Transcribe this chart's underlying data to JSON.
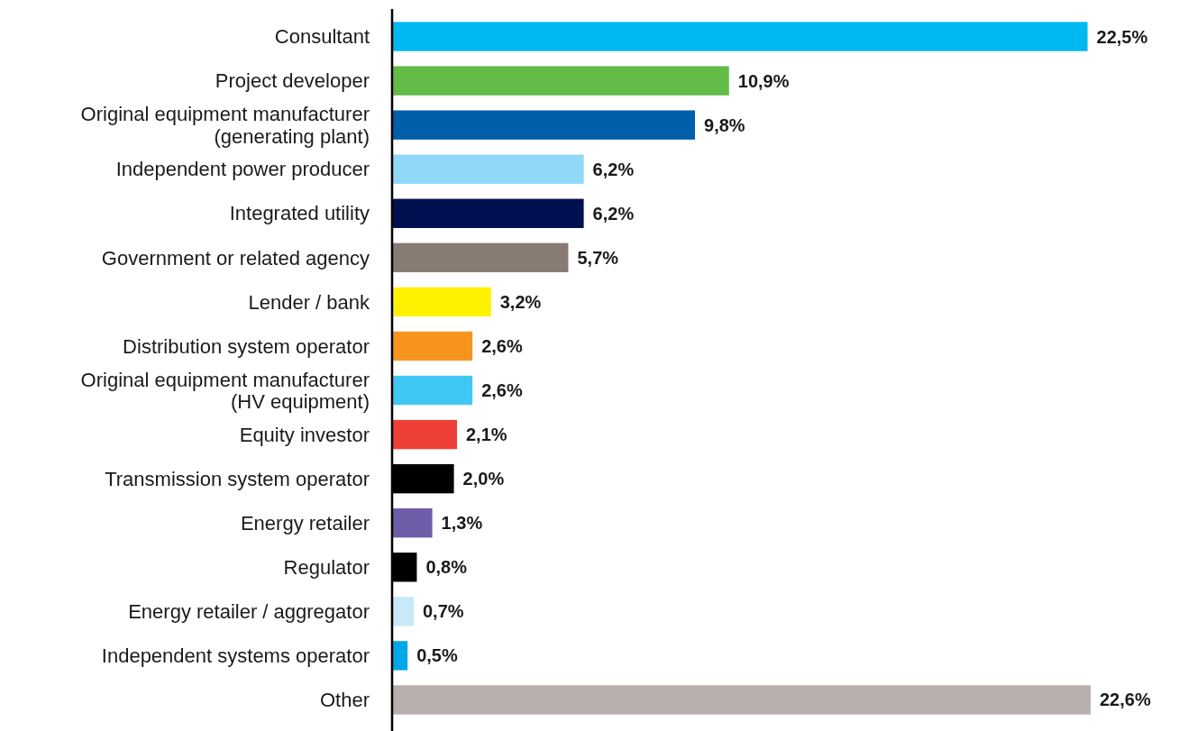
{
  "chart_data": {
    "type": "bar",
    "orientation": "horizontal",
    "relative": false,
    "categories": [
      "Consultant",
      "Project developer",
      "Original equipment manufacturer\n(generating plant)",
      "Independent power producer",
      "Integrated utility",
      "Government or related agency",
      "Lender / bank",
      "Distribution system operator",
      "Original equipment manufacturer\n(HV equipment)",
      "Equity investor",
      "Transmission system operator",
      "Energy retailer",
      "Regulator",
      "Energy retailer / aggregator",
      "Independent systems operator",
      "Other"
    ],
    "values": [
      22.5,
      10.9,
      9.8,
      6.2,
      6.2,
      5.7,
      3.2,
      2.6,
      2.6,
      2.1,
      2.0,
      1.3,
      0.8,
      0.7,
      0.5,
      22.6
    ],
    "value_labels": [
      "22,5%",
      "10,9%",
      "9,8%",
      "6,2%",
      "6,2%",
      "5,7%",
      "3,2%",
      "2,6%",
      "2,6%",
      "2,1%",
      "2,0%",
      "1,3%",
      "0,8%",
      "0,7%",
      "0,5%",
      "22,6%"
    ],
    "colors": [
      "#00b9f1",
      "#62bb46",
      "#005eaa",
      "#8fd8f7",
      "#001050",
      "#877b74",
      "#fff200",
      "#f7941d",
      "#40c8f4",
      "#ee4036",
      "#000000",
      "#6f5ca8",
      "#000000",
      "#c7e9f8",
      "#00a8e8",
      "#b8b0ac"
    ]
  }
}
